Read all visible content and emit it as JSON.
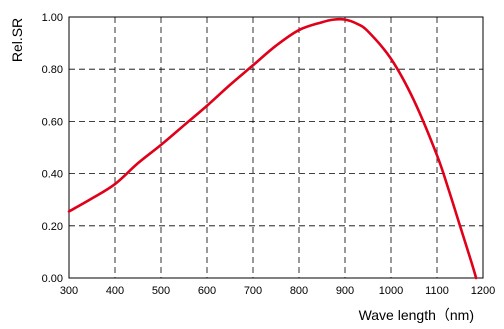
{
  "chart_data": {
    "type": "line",
    "title": "",
    "xlabel": "Wave length（nm)",
    "ylabel": "Rel.SR",
    "xlim": [
      300,
      1200
    ],
    "ylim": [
      0,
      1.0
    ],
    "x_ticks": [
      "300",
      "400",
      "500",
      "600",
      "700",
      "800",
      "900",
      "1000",
      "1100",
      "1200"
    ],
    "y_ticks": [
      "0.00",
      "0.20",
      "0.40",
      "0.60",
      "0.80",
      "1.00"
    ],
    "grid": true,
    "grid_style": "dashed",
    "legend": "none",
    "series": [
      {
        "color": "#e0001a",
        "x": [
          300,
          350,
          400,
          450,
          500,
          550,
          600,
          650,
          700,
          750,
          800,
          850,
          875,
          900,
          925,
          950,
          1000,
          1050,
          1100,
          1125,
          1150,
          1175,
          1185
        ],
        "y": [
          0.255,
          0.305,
          0.36,
          0.44,
          0.51,
          0.585,
          0.66,
          0.74,
          0.815,
          0.89,
          0.95,
          0.98,
          0.99,
          0.99,
          0.975,
          0.945,
          0.84,
          0.68,
          0.47,
          0.34,
          0.2,
          0.06,
          0.0
        ]
      }
    ]
  }
}
